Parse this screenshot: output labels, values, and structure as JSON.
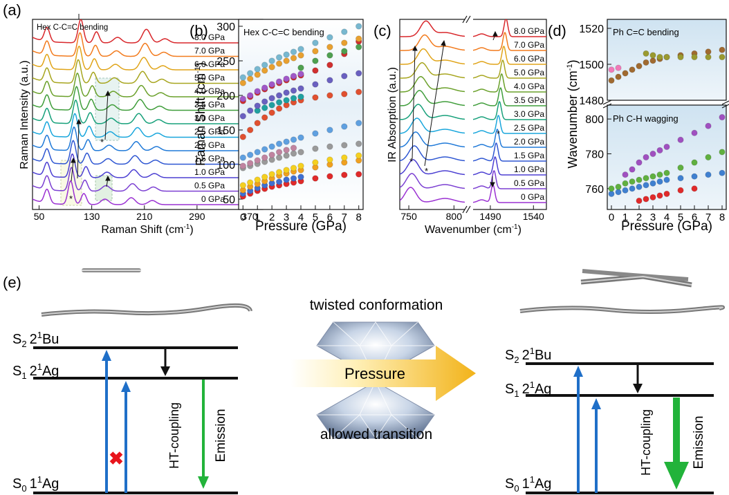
{
  "panel_labels": {
    "a": "(a)",
    "b": "(b)",
    "c": "(c)",
    "d": "(d)",
    "e": "(e)"
  },
  "chart_data": [
    {
      "panel": "(a)",
      "type": "line",
      "annotation": "Hex C-C=C bending",
      "xlabel": "Raman Shift (cm",
      "xlabel_sup": "-1",
      "xlabel_end": ")",
      "ylabel": "Raman Intensity (a.u.)",
      "xticks": [
        50,
        130,
        210,
        290,
        370
      ],
      "xticklabels": [
        "50",
        "130",
        "210",
        "290",
        "370"
      ],
      "xlim": [
        40,
        390
      ],
      "series": [
        {
          "name": "0 GPa",
          "color": "#9a30d2"
        },
        {
          "name": "0.5 GPa",
          "color": "#7b3fd2"
        },
        {
          "name": "1.0 GPa",
          "color": "#4b3fd2"
        },
        {
          "name": "1.5 GPa",
          "color": "#2e56d2"
        },
        {
          "name": "2.0 GPa",
          "color": "#1f79d8"
        },
        {
          "name": "2.5 GPa",
          "color": "#18a6dc"
        },
        {
          "name": "3.0 GPa",
          "color": "#16a07a"
        },
        {
          "name": "3.5 GPa",
          "color": "#3f9d3a"
        },
        {
          "name": "4.0 GPa",
          "color": "#6aa02a"
        },
        {
          "name": "5.0 GPa",
          "color": "#a7a51e"
        },
        {
          "name": "6.0 GPa",
          "color": "#e0a418"
        },
        {
          "name": "7.0 GPa",
          "color": "#f27a1c"
        },
        {
          "name": "8.0 GPa",
          "color": "#d8262a"
        }
      ],
      "star": "*"
    },
    {
      "panel": "(b)",
      "type": "scatter",
      "annotation": "Hex C-C=C bending",
      "xlabel": "Pressure (GPa)",
      "ylabel": "Raman Shift (cm",
      "ylabel_sup": "-1",
      "ylabel_end": ")",
      "xlim": [
        -0.3,
        8.3
      ],
      "ylim": [
        35,
        310
      ],
      "xticks": [
        0,
        1,
        2,
        3,
        4,
        5,
        6,
        7,
        8
      ],
      "yticks": [
        50,
        100,
        150,
        200,
        250,
        300
      ],
      "series": [
        {
          "color": "#e02a2a",
          "x": [
            0,
            0.5,
            1,
            1.5,
            2,
            2.5,
            3,
            3.5,
            4,
            5,
            6,
            7,
            8
          ],
          "y": [
            54,
            58,
            62,
            65,
            68,
            70,
            72,
            74,
            76,
            80,
            83,
            85,
            86
          ]
        },
        {
          "color": "#3f6fd0",
          "x": [
            0,
            0.5,
            1,
            1.5,
            2,
            2.5,
            3,
            3.5,
            4
          ],
          "y": [
            58,
            62,
            66,
            70,
            73,
            75,
            78,
            80,
            82
          ]
        },
        {
          "color": "#f0a020",
          "x": [
            0,
            0.5,
            1,
            1.5,
            2,
            2.5,
            3,
            3.5,
            4,
            5,
            6,
            7,
            8
          ],
          "y": [
            63,
            68,
            72,
            76,
            80,
            84,
            87,
            90,
            92,
            96,
            100,
            103,
            106
          ]
        },
        {
          "color": "#f5d020",
          "x": [
            0,
            0.5,
            1,
            1.5,
            2,
            2.5,
            3,
            3.5,
            4,
            5,
            6,
            7,
            8
          ],
          "y": [
            70,
            74,
            78,
            82,
            86,
            89,
            92,
            95,
            98,
            103,
            107,
            110,
            113
          ]
        },
        {
          "color": "#9a9a9a",
          "x": [
            0,
            0.5,
            1,
            1.5,
            2,
            2.5,
            3,
            3.5,
            4,
            5,
            6,
            7,
            8
          ],
          "y": [
            95,
            98,
            101,
            104,
            107,
            110,
            113,
            116,
            118,
            123,
            126,
            128,
            130
          ]
        },
        {
          "color": "#c084a0",
          "x": [
            0,
            0.5,
            1,
            1.5,
            2,
            2.5,
            3,
            3.5
          ],
          "y": [
            98,
            102,
            106,
            110,
            114,
            118,
            121,
            124
          ]
        },
        {
          "color": "#5fa0e0",
          "x": [
            0,
            0.5,
            1,
            1.5,
            2,
            2.5,
            3,
            3.5,
            4,
            5,
            6,
            7,
            8
          ],
          "y": [
            110,
            114,
            118,
            122,
            126,
            130,
            133,
            136,
            139,
            145,
            150,
            155,
            160
          ]
        },
        {
          "color": "#e05030",
          "x": [
            0,
            0.5,
            1,
            1.5,
            2,
            2.5,
            3,
            3.5,
            4,
            5,
            6,
            7,
            8
          ],
          "y": [
            140,
            150,
            160,
            168,
            175,
            181,
            186,
            190,
            193,
            197,
            200,
            202,
            205
          ]
        },
        {
          "color": "#20a0a0",
          "x": [
            1,
            1.5,
            2,
            2.5,
            3,
            3.5,
            4
          ],
          "y": [
            178,
            182,
            186,
            190,
            193,
            196,
            198
          ]
        },
        {
          "color": "#6a60c0",
          "x": [
            0,
            0.5,
            1,
            1.5,
            2,
            2.5,
            3,
            3.5,
            4,
            5,
            6,
            7,
            8
          ],
          "y": [
            170,
            178,
            185,
            191,
            196,
            200,
            204,
            207,
            210,
            216,
            222,
            228,
            232
          ]
        },
        {
          "color": "#d03030",
          "x": [
            0,
            0.5,
            1,
            1.5,
            2,
            2.5,
            3,
            3.5,
            4,
            5,
            6,
            7,
            8
          ],
          "y": [
            192,
            198,
            204,
            209,
            214,
            218,
            222,
            226,
            229,
            236,
            244,
            260,
            278
          ]
        },
        {
          "color": "#a058c8",
          "x": [
            0,
            0.5,
            1,
            1.5,
            2,
            2.5,
            3,
            3.5,
            4
          ],
          "y": [
            195,
            200,
            206,
            211,
            216,
            220,
            224,
            228,
            231
          ]
        },
        {
          "color": "#e8a030",
          "x": [
            0,
            0.5,
            1,
            1.5,
            2,
            2.5,
            3,
            3.5,
            4,
            5,
            6,
            7,
            8
          ],
          "y": [
            218,
            224,
            230,
            236,
            241,
            246,
            250,
            254,
            258,
            264,
            270,
            276,
            282
          ]
        },
        {
          "color": "#78b8d0",
          "x": [
            0,
            0.5,
            1,
            1.5,
            2,
            2.5,
            3,
            3.5,
            4,
            5,
            6,
            7,
            8
          ],
          "y": [
            226,
            232,
            238,
            244,
            250,
            255,
            259,
            263,
            267,
            276,
            284,
            292,
            300
          ]
        },
        {
          "color": "#4fa050",
          "x": [
            4,
            5,
            6,
            7,
            8
          ],
          "y": [
            240,
            250,
            258,
            264,
            270
          ]
        }
      ]
    },
    {
      "panel": "(c)",
      "type": "line",
      "xlabel": "Wavenumber (cm",
      "xlabel_sup": "-1",
      "xlabel_end": ")",
      "ylabel": "IR Absorption (a.u.)",
      "xticks_left": [
        750,
        800
      ],
      "xticks_right": [
        1490,
        1540
      ],
      "xlim_left": [
        740,
        812
      ],
      "xlim_right": [
        1470,
        1555
      ],
      "series": [
        {
          "name": "0 GPa",
          "color": "#9a30d2"
        },
        {
          "name": "0.5 GPa",
          "color": "#7b3fd2"
        },
        {
          "name": "1.0 GPa",
          "color": "#4b3fd2"
        },
        {
          "name": "1.5 GPa",
          "color": "#2e56d2"
        },
        {
          "name": "2.0 GPa",
          "color": "#1f79d8"
        },
        {
          "name": "2.5 GPa",
          "color": "#18a6dc"
        },
        {
          "name": "3.0 GPa",
          "color": "#16a07a"
        },
        {
          "name": "3.5 GPa",
          "color": "#3f9d3a"
        },
        {
          "name": "4.0 GPa",
          "color": "#6aa02a"
        },
        {
          "name": "5.0 GPa",
          "color": "#a7a51e"
        },
        {
          "name": "6.0 GPa",
          "color": "#e0a418"
        },
        {
          "name": "7.0 GPa",
          "color": "#f27a1c"
        },
        {
          "name": "8.0 GPa",
          "color": "#d8262a"
        }
      ],
      "star": "*"
    },
    {
      "panel": "(d)",
      "type": "scatter",
      "xlabel": "Pressure (GPa)",
      "ylabel": "Wavenumber (cm",
      "ylabel_sup": "-1",
      "ylabel_end": ")",
      "xticks": [
        0,
        1,
        2,
        3,
        4,
        5,
        6,
        7,
        8
      ],
      "top": {
        "annotation": "Ph C=C bending",
        "ylim": [
          1480,
          1525
        ],
        "yticks": [
          1480,
          1500,
          1520
        ],
        "series": [
          {
            "color": "#a06a30",
            "x": [
              0,
              0.5,
              1,
              1.5,
              2,
              2.5,
              3,
              3.5,
              4,
              5,
              6,
              7,
              8
            ],
            "y": [
              1491,
              1493,
              1495,
              1497,
              1499,
              1501,
              1502,
              1503,
              1504,
              1505,
              1506,
              1507,
              1508
            ]
          },
          {
            "color": "#f07ab8",
            "x": [
              0,
              0.5
            ],
            "y": [
              1497,
              1498
            ]
          },
          {
            "color": "#9a9a30",
            "x": [
              2.5,
              3,
              3.5,
              4,
              5,
              6,
              7,
              8
            ],
            "y": [
              1506,
              1505,
              1504,
              1504,
              1504,
              1504,
              1504,
              1504
            ]
          }
        ]
      },
      "bottom": {
        "annotation": "Ph C-H wagging",
        "ylim": [
          748,
          808
        ],
        "yticks": [
          760,
          780,
          800
        ],
        "series": [
          {
            "color": "#e02a2a",
            "x": [
              2,
              2.5,
              3,
              3.5,
              4,
              5,
              6
            ],
            "y": [
              753,
              754,
              755,
              756,
              757,
              759,
              760
            ]
          },
          {
            "color": "#3f80d0",
            "x": [
              0,
              0.5,
              1,
              1.5,
              2,
              2.5,
              3,
              3.5,
              4,
              5,
              6,
              7,
              8
            ],
            "y": [
              757,
              758,
              759,
              760,
              761,
              762,
              763,
              764,
              765,
              766,
              767,
              768,
              769
            ]
          },
          {
            "color": "#60b040",
            "x": [
              0,
              0.5,
              1,
              1.5,
              2,
              2.5,
              3,
              3.5,
              4,
              5,
              6,
              7,
              8
            ],
            "y": [
              760,
              761,
              763,
              764,
              765,
              766,
              767,
              768,
              769,
              772,
              775,
              778,
              781
            ]
          },
          {
            "color": "#a050c0",
            "x": [
              1,
              1.5,
              2,
              2.5,
              3,
              3.5,
              4,
              5,
              6,
              7,
              8
            ],
            "y": [
              768,
              771,
              775,
              778,
              780,
              782,
              784,
              788,
              792,
              796,
              801
            ]
          }
        ]
      }
    }
  ],
  "diagram": {
    "center_top": "twisted conformation",
    "center_arrow": "Pressure",
    "center_bottom": "allowed transition",
    "left": {
      "s2": "S",
      "s2_sub": "2",
      "s2_state_pre": "2",
      "s2_state_sup": "1",
      "s2_state": "Bu",
      "s1": "S",
      "s1_sub": "1",
      "s1_state_pre": "2",
      "s1_state_sup": "1",
      "s1_state": "Ag",
      "s0": "S",
      "s0_sub": "0",
      "s0_state_pre": "1",
      "s0_state_sup": "1",
      "s0_state": "Ag",
      "ht": "HT-coupling",
      "emission": "Emission",
      "forbidden": "✖"
    },
    "right": {
      "s2": "S",
      "s2_sub": "2",
      "s2_state_pre": "2",
      "s2_state_sup": "1",
      "s2_state": "Bu",
      "s1": "S",
      "s1_sub": "1",
      "s1_state_pre": "2",
      "s1_state_sup": "1",
      "s1_state": "Ag",
      "s0": "S",
      "s0_sub": "0",
      "s0_state_pre": "1",
      "s0_state_sup": "1",
      "s0_state": "Ag",
      "ht": "HT-coupling",
      "emission": "Emission"
    },
    "colors": {
      "absorb": "#1f6fc8",
      "emission": "#22b33a",
      "forbidden": "#e8141c",
      "arrow_start": "#fff6d8",
      "arrow_end": "#f3b81c"
    }
  }
}
